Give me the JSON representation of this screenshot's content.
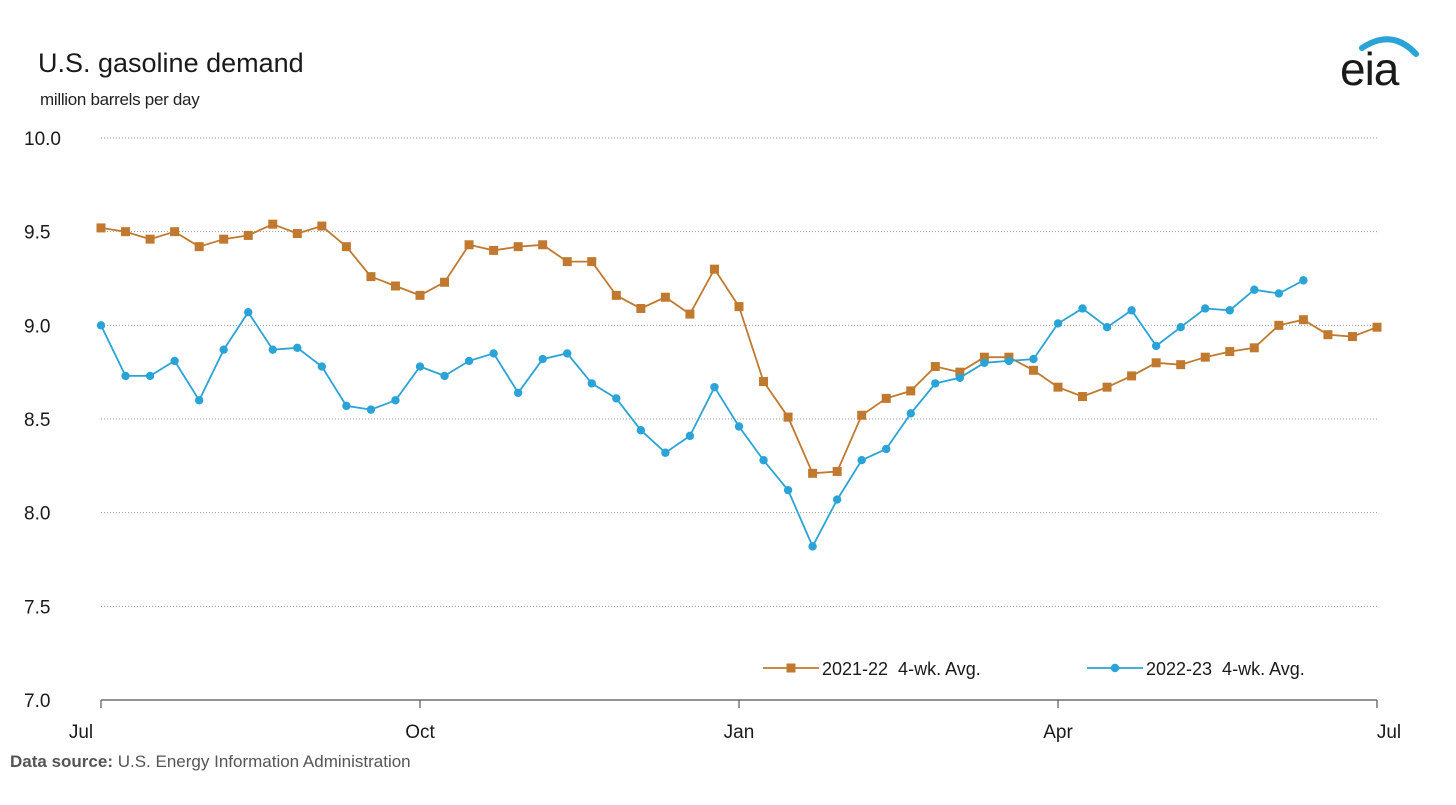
{
  "header": {
    "title": "U.S. gasoline demand",
    "subtitle": "million barrels per day",
    "logo_text": "eia"
  },
  "footer": {
    "source_label": "Data source:",
    "source_text": "U.S. Energy Information Administration"
  },
  "chart_data": {
    "type": "line",
    "title": "U.S. gasoline demand",
    "ylabel": "million barrels per day",
    "ylim": [
      7.0,
      10.0
    ],
    "yticks": [
      "10.0",
      "9.5",
      "9.0",
      "8.5",
      "8.0",
      "7.5",
      "7.0"
    ],
    "ytick_values": [
      10.0,
      9.5,
      9.0,
      8.5,
      8.0,
      7.5,
      7.0
    ],
    "xlim_weeks": [
      0,
      52
    ],
    "xticks": [
      {
        "label": "Jul",
        "week": 0
      },
      {
        "label": "Oct",
        "week": 13
      },
      {
        "label": "Jan",
        "week": 26
      },
      {
        "label": "Apr",
        "week": 39
      },
      {
        "label": "Jul",
        "week": 52
      }
    ],
    "grid": "horizontal dotted",
    "legend_position": "bottom-right",
    "series": [
      {
        "name": "2021-22  4-wk. Avg.",
        "color": "#c0792e",
        "marker": "square",
        "values": [
          9.52,
          9.5,
          9.46,
          9.5,
          9.42,
          9.46,
          9.48,
          9.54,
          9.49,
          9.53,
          9.42,
          9.26,
          9.21,
          9.16,
          9.23,
          9.43,
          9.4,
          9.42,
          9.43,
          9.34,
          9.34,
          9.16,
          9.09,
          9.15,
          9.06,
          9.3,
          9.1,
          8.7,
          8.51,
          8.21,
          8.22,
          8.52,
          8.61,
          8.65,
          8.78,
          8.75,
          8.83,
          8.83,
          8.76,
          8.67,
          8.62,
          8.67,
          8.73,
          8.8,
          8.79,
          8.83,
          8.86,
          8.88,
          9.0,
          9.03,
          8.95,
          8.94,
          8.99
        ]
      },
      {
        "name": "2022-23  4-wk. Avg.",
        "color": "#2aa3d7",
        "marker": "circle",
        "values": [
          9.0,
          8.73,
          8.73,
          8.81,
          8.6,
          8.87,
          9.07,
          8.87,
          8.88,
          8.78,
          8.57,
          8.55,
          8.6,
          8.78,
          8.73,
          8.81,
          8.85,
          8.64,
          8.82,
          8.85,
          8.69,
          8.61,
          8.44,
          8.32,
          8.41,
          8.67,
          8.46,
          8.28,
          8.12,
          7.82,
          8.07,
          8.28,
          8.34,
          8.53,
          8.69,
          8.72,
          8.8,
          8.81,
          8.82,
          9.01,
          9.09,
          8.99,
          9.08,
          8.89,
          8.99,
          9.09,
          9.08,
          9.19,
          9.17,
          9.24
        ]
      }
    ]
  }
}
